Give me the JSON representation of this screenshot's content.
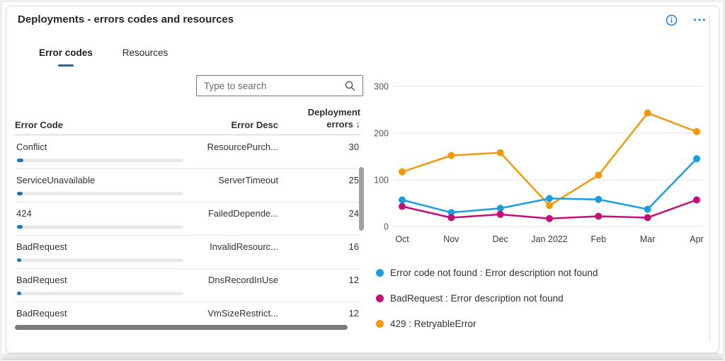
{
  "header": {
    "title": "Deployments - errors codes and resources"
  },
  "tabs": [
    {
      "label": "Error codes",
      "active": true
    },
    {
      "label": "Resources",
      "active": false
    }
  ],
  "search": {
    "placeholder": "Type to search"
  },
  "table": {
    "header": {
      "code": "Error Code",
      "desc": "Error Desc",
      "errors_line1": "Deployment",
      "errors_line2": "errors",
      "sort_icon": "↓"
    },
    "rows": [
      {
        "code": "Conflict",
        "desc": "ResourcePurch...",
        "errors": 30
      },
      {
        "code": "ServiceUnavailable",
        "desc": "ServerTimeout",
        "errors": 25
      },
      {
        "code": "424",
        "desc": "FailedDepende...",
        "errors": 24
      },
      {
        "code": "BadRequest",
        "desc": "InvalidResourc...",
        "errors": 16
      },
      {
        "code": "BadRequest",
        "desc": "DnsRecordInUse",
        "errors": 12
      },
      {
        "code": "BadRequest",
        "desc": "VmSizeRestrict...",
        "errors": 12
      }
    ]
  },
  "chart_data": {
    "type": "line",
    "x_categories": [
      "Oct",
      "Nov",
      "Dec",
      "Jan 2022",
      "Feb",
      "Mar",
      "Apr"
    ],
    "series": [
      {
        "name": "Error code not found : Error description not found",
        "color": "#1b9de0",
        "values": [
          57,
          30,
          39,
          60,
          58,
          37,
          145
        ]
      },
      {
        "name": "BadRequest : Error description not found",
        "color": "#c50e77",
        "values": [
          43,
          19,
          26,
          17,
          22,
          19,
          57
        ]
      },
      {
        "name": "429 : RetryableError",
        "color": "#f2990a",
        "values": [
          117,
          152,
          158,
          45,
          110,
          243,
          203
        ]
      }
    ],
    "ylim": [
      0,
      300
    ],
    "yticks": [
      0,
      100,
      200,
      300
    ],
    "grid": true,
    "legend_position": "bottom"
  },
  "colors": {
    "accent": "#0f6cbd",
    "icon_blue": "#1b7fd4",
    "progress_bar": "#1f74c0",
    "gridline": "#e4e3e2",
    "axis_text": "#55565a"
  }
}
